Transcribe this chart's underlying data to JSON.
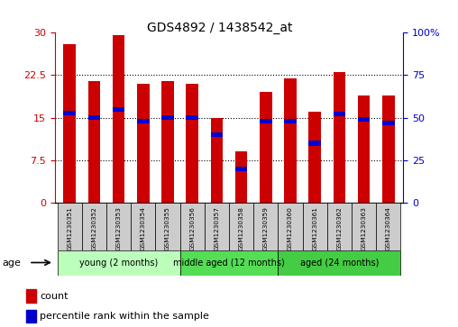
{
  "title": "GDS4892 / 1438542_at",
  "samples": [
    "GSM1230351",
    "GSM1230352",
    "GSM1230353",
    "GSM1230354",
    "GSM1230355",
    "GSM1230356",
    "GSM1230357",
    "GSM1230358",
    "GSM1230359",
    "GSM1230360",
    "GSM1230361",
    "GSM1230362",
    "GSM1230363",
    "GSM1230364"
  ],
  "counts": [
    28.0,
    21.5,
    29.5,
    21.0,
    21.5,
    21.0,
    15.0,
    9.0,
    19.5,
    22.0,
    16.0,
    23.0,
    19.0,
    19.0
  ],
  "percentiles": [
    53,
    50,
    55,
    48,
    50,
    50,
    40,
    20,
    48,
    48,
    35,
    52,
    49,
    47
  ],
  "ylim_left": [
    0,
    30
  ],
  "ylim_right": [
    0,
    100
  ],
  "yticks_left": [
    0,
    7.5,
    15,
    22.5,
    30
  ],
  "ytick_labels_left": [
    "0",
    "7.5",
    "15",
    "22.5",
    "30"
  ],
  "yticks_right": [
    0,
    25,
    50,
    75,
    100
  ],
  "ytick_labels_right": [
    "0",
    "25",
    "50",
    "75",
    "100%"
  ],
  "bar_color": "#cc0000",
  "percentile_color": "#0000cc",
  "bar_width": 0.5,
  "groups": [
    {
      "label": "young (2 months)",
      "indices": [
        0,
        1,
        2,
        3,
        4
      ],
      "color": "#bbffbb"
    },
    {
      "label": "middle aged (12 months)",
      "indices": [
        5,
        6,
        7,
        8
      ],
      "color": "#55dd55"
    },
    {
      "label": "aged (24 months)",
      "indices": [
        9,
        10,
        11,
        12,
        13
      ],
      "color": "#44cc44"
    }
  ],
  "age_label": "age",
  "legend_count_label": "count",
  "legend_percentile_label": "percentile rank within the sample",
  "axis_left_color": "#cc0000",
  "axis_right_color": "#0000cc"
}
